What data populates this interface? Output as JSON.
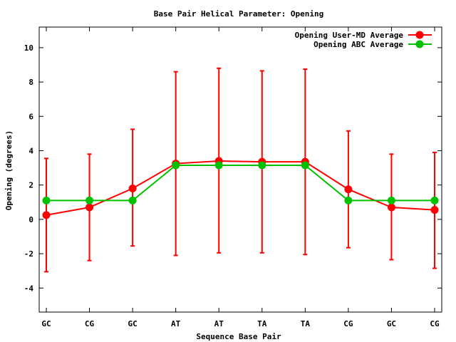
{
  "chart_data": {
    "type": "line",
    "title": "Base Pair Helical Parameter: Opening",
    "xlabel": "Sequence Base Pair",
    "ylabel": "Opening (degrees)",
    "categories": [
      "GC",
      "CG",
      "GC",
      "AT",
      "AT",
      "TA",
      "TA",
      "CG",
      "GC",
      "CG"
    ],
    "ylim": [
      -5.4,
      11.2
    ],
    "yticks": [
      -4,
      -2,
      0,
      2,
      4,
      6,
      8,
      10
    ],
    "ytick_labels": [
      "-4",
      "-2",
      "0",
      "2",
      "4",
      "6",
      "8",
      "10"
    ],
    "grid": false,
    "legend_position": "top-right",
    "series": [
      {
        "name": "Opening User-MD Average",
        "color": "#ff0000",
        "values": [
          0.25,
          0.7,
          1.8,
          3.25,
          3.4,
          3.35,
          3.35,
          1.75,
          0.7,
          0.55
        ],
        "error_low": [
          -3.05,
          -2.4,
          -1.55,
          -2.1,
          -1.95,
          -1.95,
          -2.05,
          -1.65,
          -2.35,
          -2.85
        ],
        "error_high": [
          3.55,
          3.8,
          5.25,
          8.6,
          8.8,
          8.65,
          8.75,
          5.15,
          3.8,
          3.9
        ]
      },
      {
        "name": "Opening ABC Average",
        "color": "#00c000",
        "values": [
          1.1,
          1.1,
          1.1,
          3.15,
          3.15,
          3.15,
          3.15,
          1.1,
          1.1,
          1.1
        ]
      }
    ]
  }
}
